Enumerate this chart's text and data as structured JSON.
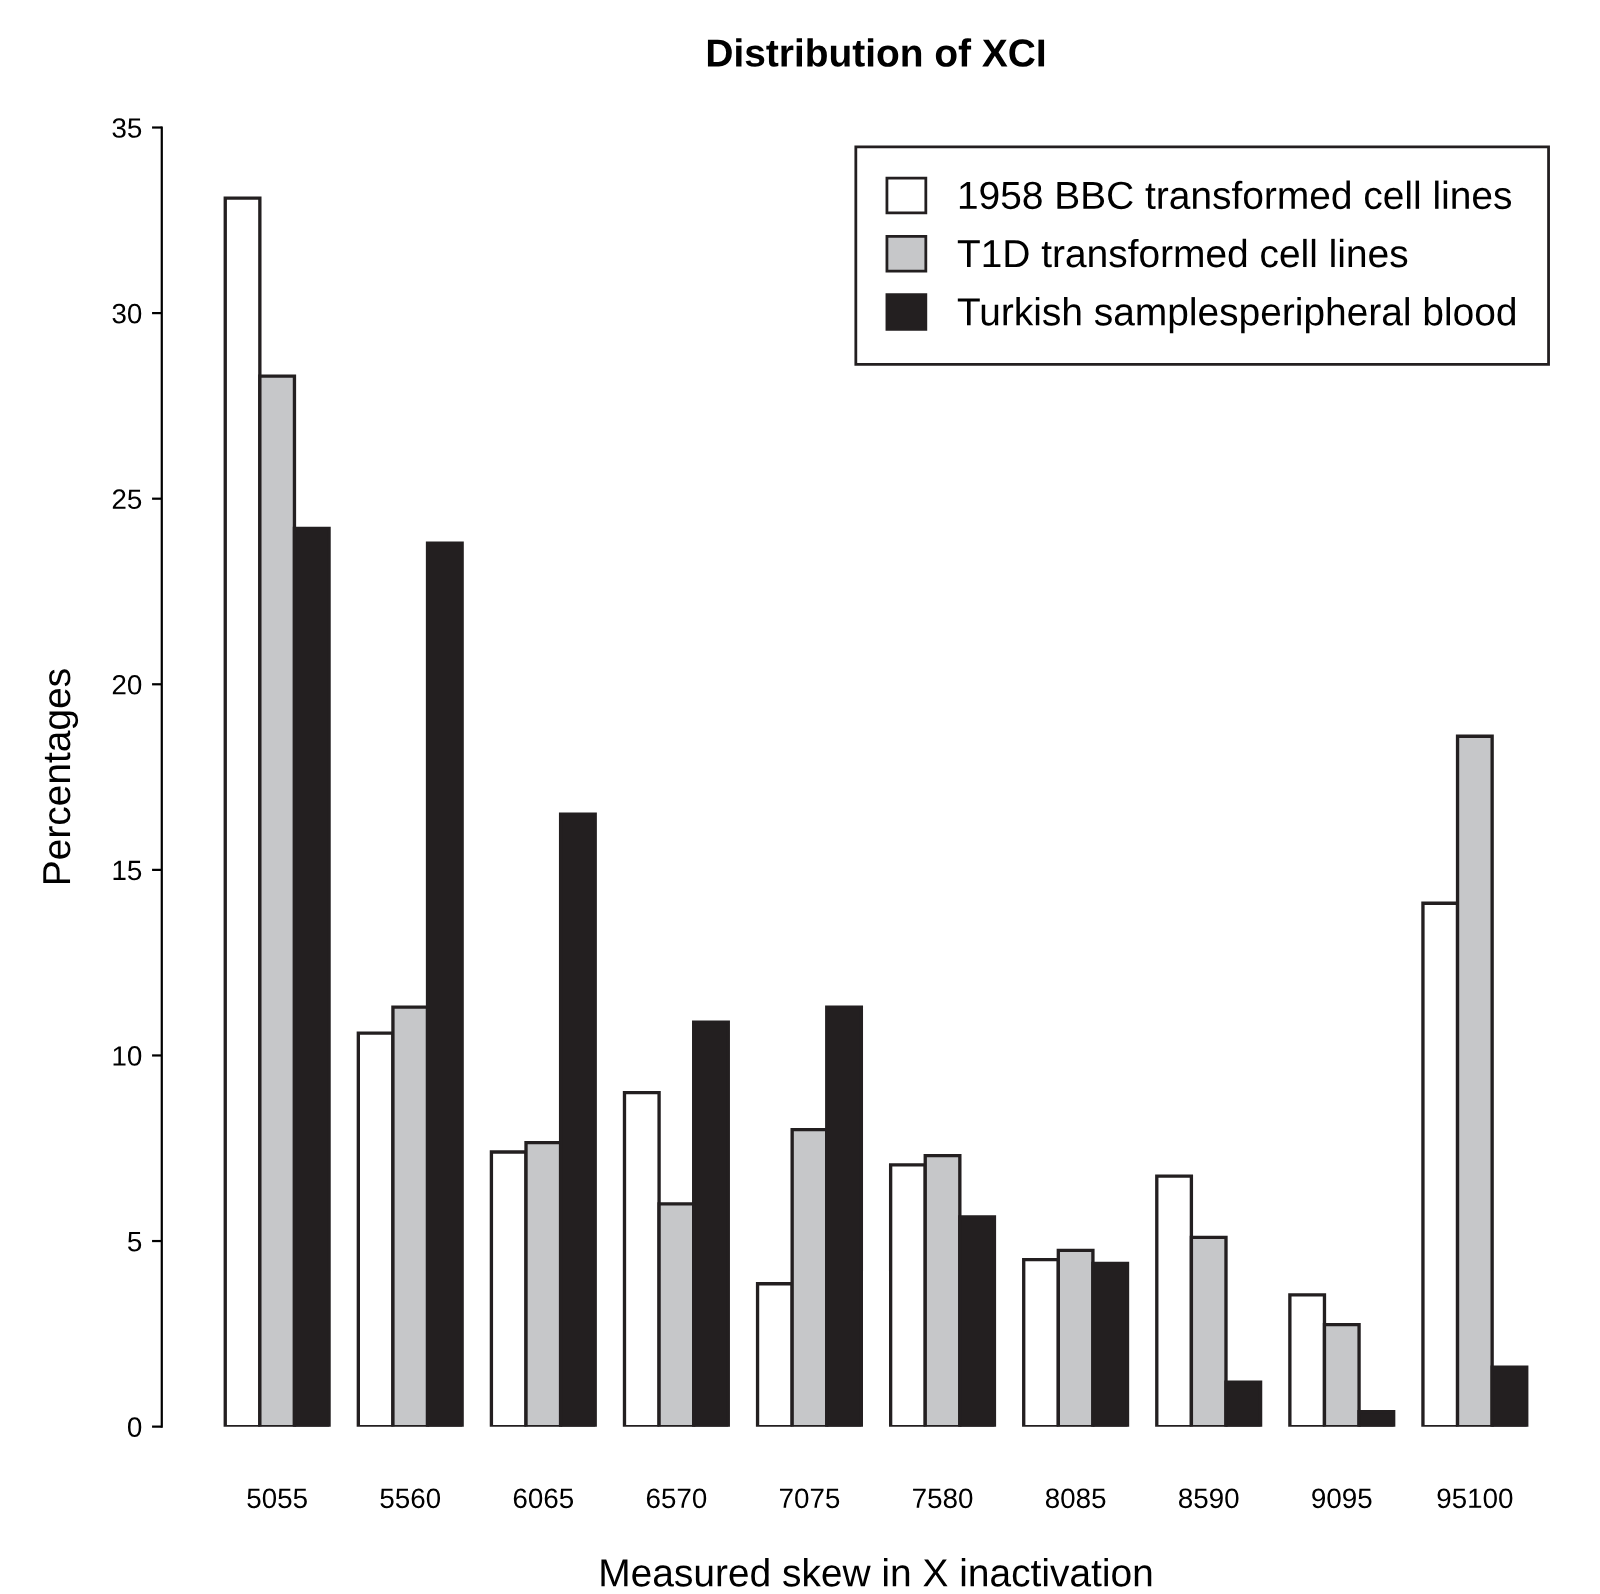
{
  "chart_data": {
    "type": "bar",
    "title": "Distribution of XCI",
    "xlabel": "Measured skew in X inactivation",
    "ylabel": "Percentages",
    "categories": [
      "5055",
      "5560",
      "6065",
      "6570",
      "7075",
      "7580",
      "8085",
      "8590",
      "9095",
      "95100"
    ],
    "series": [
      {
        "name": "1958 BBC transformed cell lines",
        "color": "#ffffff",
        "values": [
          33.1,
          10.6,
          7.4,
          9.0,
          3.85,
          7.05,
          4.5,
          6.75,
          3.55,
          14.1
        ]
      },
      {
        "name": "T1D transformed cell lines",
        "color": "#c6c7c9",
        "values": [
          28.3,
          11.3,
          7.65,
          6.0,
          8.0,
          7.3,
          4.75,
          5.1,
          2.75,
          18.6
        ]
      },
      {
        "name": "Turkish samplesperipheral blood",
        "color": "#231f20",
        "values": [
          24.2,
          23.8,
          16.5,
          10.9,
          11.3,
          5.65,
          4.4,
          1.2,
          0.4,
          1.6
        ]
      }
    ],
    "ylim": [
      0,
      35
    ],
    "yticks": [
      0,
      5,
      10,
      15,
      20,
      25,
      30,
      35
    ],
    "legend": "top right",
    "grid": false
  }
}
